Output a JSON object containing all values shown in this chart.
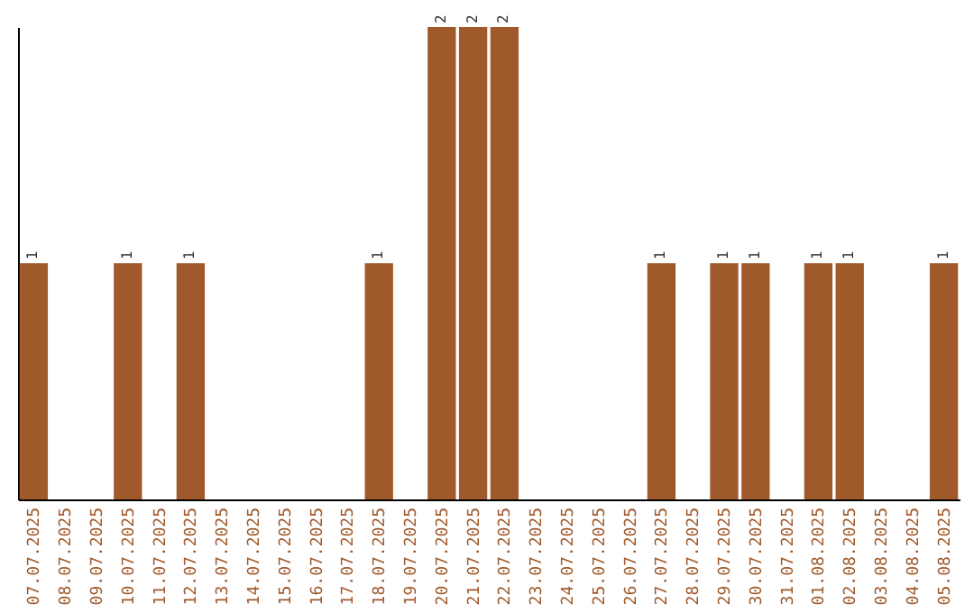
{
  "chart_data": {
    "type": "bar",
    "color": "#a0592b",
    "categories": [
      "07.07.2025",
      "08.07.2025",
      "09.07.2025",
      "10.07.2025",
      "11.07.2025",
      "12.07.2025",
      "13.07.2025",
      "14.07.2025",
      "15.07.2025",
      "16.07.2025",
      "17.07.2025",
      "18.07.2025",
      "19.07.2025",
      "20.07.2025",
      "21.07.2025",
      "22.07.2025",
      "23.07.2025",
      "24.07.2025",
      "25.07.2025",
      "26.07.2025",
      "27.07.2025",
      "28.07.2025",
      "29.07.2025",
      "30.07.2025",
      "31.07.2025",
      "01.08.2025",
      "02.08.2025",
      "03.08.2025",
      "04.08.2025",
      "05.08.2025"
    ],
    "values": [
      1,
      0,
      0,
      1,
      0,
      1,
      0,
      0,
      0,
      0,
      0,
      1,
      0,
      2,
      2,
      2,
      0,
      0,
      0,
      0,
      1,
      0,
      1,
      1,
      0,
      1,
      1,
      0,
      0,
      1
    ],
    "value_labels": [
      "1",
      null,
      null,
      "1",
      null,
      "1",
      null,
      null,
      null,
      null,
      null,
      "1",
      null,
      "2",
      "2",
      "2",
      null,
      null,
      null,
      null,
      "1",
      null,
      "1",
      "1",
      null,
      "1",
      "1",
      null,
      null,
      "1"
    ]
  }
}
